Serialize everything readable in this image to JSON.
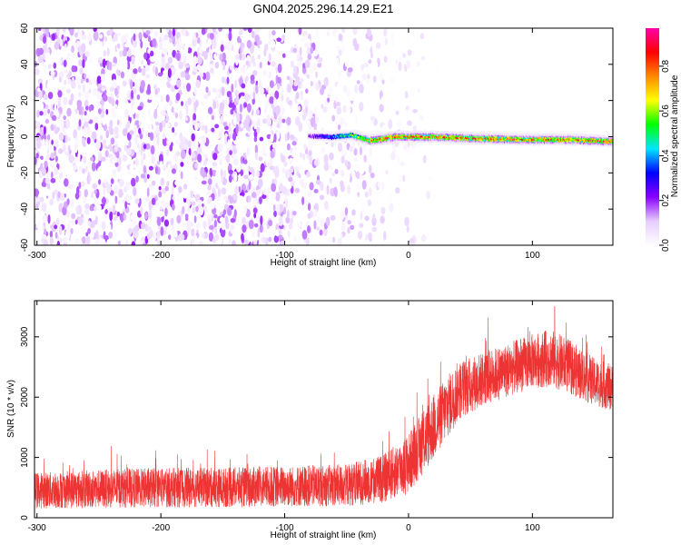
{
  "figure": {
    "title": "GN04.2025.296.14.29.E21"
  },
  "chart_data": [
    {
      "type": "heatmap",
      "title": "GN04.2025.296.14.29.E21",
      "xlabel": "Height of straight line (km)",
      "ylabel": "Frequency (Hz)",
      "xlim": [
        -302,
        165
      ],
      "ylim": [
        -60,
        60
      ],
      "x_ticks": [
        -300,
        -200,
        -100,
        0,
        100
      ],
      "x_tick_labels": [
        "-300",
        "-200",
        "-100",
        "0",
        "100"
      ],
      "y_ticks": [
        -60,
        -40,
        -20,
        0,
        20,
        40,
        60
      ],
      "y_tick_labels": [
        "-60",
        "-40",
        "-20",
        "0",
        "20",
        "40",
        "60"
      ],
      "colorbar": {
        "label": "Normalized spectral amplitude",
        "range": [
          0,
          0.97
        ],
        "ticks": [
          0.0,
          0.2,
          0.4,
          0.6,
          0.8
        ],
        "tick_labels": [
          "0.0",
          "0.2",
          "0.4",
          "0.6",
          "0.8"
        ],
        "colormap": [
          "#ffffff",
          "#e6ccff",
          "#8800ff",
          "#0000ff",
          "#00e5ff",
          "#00ff00",
          "#ffff00",
          "#ff8800",
          "#ff0000",
          "#ff00aa"
        ]
      },
      "noise_region": {
        "x_range": [
          -302,
          -15
        ],
        "y_range": [
          -60,
          60
        ],
        "amplitude_range": [
          0.0,
          0.2
        ],
        "density_fades_from_x": -120
      },
      "signal_band": {
        "center_frequency_hz": [
          {
            "x": -80,
            "y": 0.5
          },
          {
            "x": -60,
            "y": 0.0
          },
          {
            "x": -45,
            "y": 1.0
          },
          {
            "x": -30,
            "y": -2.0
          },
          {
            "x": -10,
            "y": 0.0
          },
          {
            "x": 20,
            "y": 0.0
          },
          {
            "x": 60,
            "y": -1.0
          },
          {
            "x": 100,
            "y": -1.5
          },
          {
            "x": 130,
            "y": -1.5
          },
          {
            "x": 165,
            "y": -2.5
          }
        ],
        "half_width_hz": 2.5,
        "peak_amplitude": 0.95
      },
      "grid": false
    },
    {
      "type": "line",
      "xlabel": "Height of straight line (km)",
      "ylabel": "SNR (10 * v/v)",
      "xlim": [
        -302,
        165
      ],
      "ylim": [
        0,
        3600
      ],
      "x_ticks": [
        -300,
        -200,
        -100,
        0,
        100
      ],
      "x_tick_labels": [
        "-300",
        "-200",
        "-100",
        "0",
        "100"
      ],
      "y_ticks": [
        0,
        1000,
        2000,
        3000
      ],
      "y_tick_labels": [
        "0",
        "1000",
        "2000",
        "3000"
      ],
      "series": [
        {
          "color": "#ee3333",
          "envelope": [
            {
              "x": -302,
              "mean": 450,
              "spread": 300
            },
            {
              "x": -250,
              "mean": 480,
              "spread": 320
            },
            {
              "x": -200,
              "mean": 500,
              "spread": 330
            },
            {
              "x": -150,
              "mean": 500,
              "spread": 330
            },
            {
              "x": -100,
              "mean": 520,
              "spread": 340
            },
            {
              "x": -50,
              "mean": 540,
              "spread": 350
            },
            {
              "x": -20,
              "mean": 650,
              "spread": 400
            },
            {
              "x": 0,
              "mean": 900,
              "spread": 500
            },
            {
              "x": 20,
              "mean": 1500,
              "spread": 550
            },
            {
              "x": 40,
              "mean": 2100,
              "spread": 500
            },
            {
              "x": 60,
              "mean": 2300,
              "spread": 450
            },
            {
              "x": 80,
              "mean": 2450,
              "spread": 450
            },
            {
              "x": 100,
              "mean": 2600,
              "spread": 450
            },
            {
              "x": 115,
              "mean": 2650,
              "spread": 480
            },
            {
              "x": 130,
              "mean": 2500,
              "spread": 450
            },
            {
              "x": 150,
              "mean": 2250,
              "spread": 400
            },
            {
              "x": 165,
              "mean": 2150,
              "spread": 380
            }
          ],
          "peak": {
            "x": 118,
            "y": 3500
          }
        }
      ],
      "grid": false
    }
  ]
}
